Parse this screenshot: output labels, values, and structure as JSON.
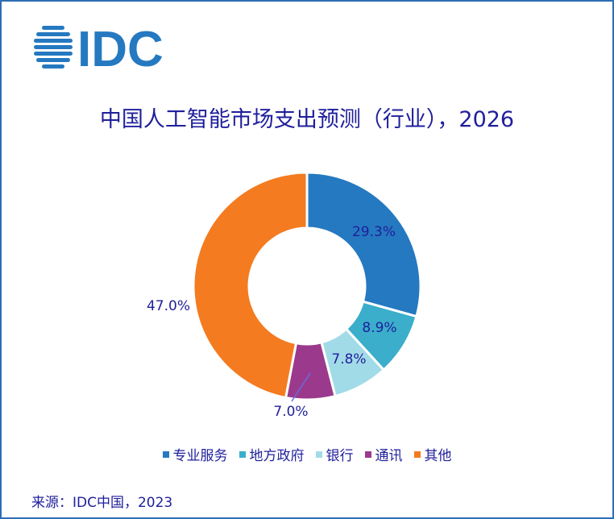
{
  "logo": {
    "text": "IDC",
    "icon": "idc-globe-icon"
  },
  "chart_data": {
    "type": "pie",
    "donut": true,
    "title": "中国人工智能市场支出预测（行业），2026",
    "series": [
      {
        "name": "专业服务",
        "value": 29.3,
        "label": "29.3%",
        "color": "#2579c0"
      },
      {
        "name": "地方政府",
        "value": 8.9,
        "label": "8.9%",
        "color": "#3aaecb"
      },
      {
        "name": "银行",
        "value": 7.8,
        "label": "7.8%",
        "color": "#a2dbe8"
      },
      {
        "name": "通讯",
        "value": 7.0,
        "label": "7.0%",
        "color": "#9b3a8c"
      },
      {
        "name": "其他",
        "value": 47.0,
        "label": "47.0%",
        "color": "#f47b20"
      }
    ],
    "legend_position": "bottom"
  },
  "source": "来源：IDC中国，2023"
}
